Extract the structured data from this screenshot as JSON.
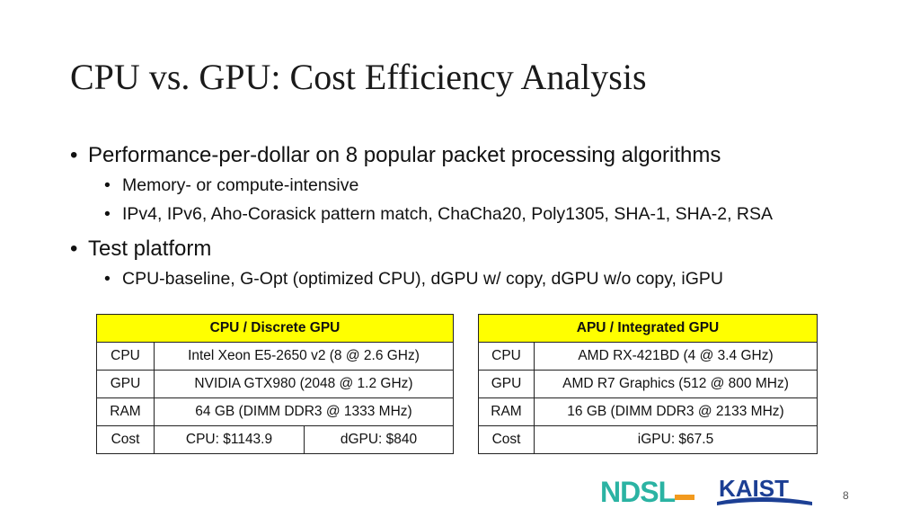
{
  "title": "CPU vs. GPU: Cost Efficiency Analysis",
  "bullets": [
    {
      "text": "Performance-per-dollar on 8 popular packet processing algorithms",
      "sub": [
        "Memory- or compute-intensive",
        "IPv4, IPv6, Aho-Corasick pattern match, ChaCha20, Poly1305, SHA-1, SHA-2, RSA"
      ]
    },
    {
      "text": "Test platform",
      "sub": [
        "CPU-baseline, G-Opt (optimized CPU), dGPU w/ copy, dGPU w/o copy, iGPU"
      ]
    }
  ],
  "table_discrete": {
    "header": "CPU / Discrete GPU",
    "cpu_label": "CPU",
    "cpu_value": "Intel Xeon E5-2650 v2 (8 @ 2.6 GHz)",
    "gpu_label": "GPU",
    "gpu_value": "NVIDIA GTX980 (2048 @ 1.2 GHz)",
    "ram_label": "RAM",
    "ram_value": "64 GB (DIMM DDR3 @ 1333 MHz)",
    "cost_label": "Cost",
    "cost_cpu": "CPU: $1143.9",
    "cost_gpu": "dGPU: $840"
  },
  "table_integrated": {
    "header": "APU / Integrated GPU",
    "cpu_label": "CPU",
    "cpu_value": "AMD RX-421BD (4 @ 3.4 GHz)",
    "gpu_label": "GPU",
    "gpu_value": "AMD R7 Graphics (512 @ 800 MHz)",
    "ram_label": "RAM",
    "ram_value": "16 GB (DIMM DDR3 @ 2133 MHz)",
    "cost_label": "Cost",
    "cost_value": "iGPU: $67.5"
  },
  "logos": {
    "ndsl": "NDSL",
    "kaist": "KAIST"
  },
  "page_number": "8",
  "colors": {
    "header_fill": "#ffff00",
    "kaist_blue": "#1c3f94",
    "ndsl_teal": "#2bb3a3",
    "ndsl_orange": "#f29a1e"
  }
}
